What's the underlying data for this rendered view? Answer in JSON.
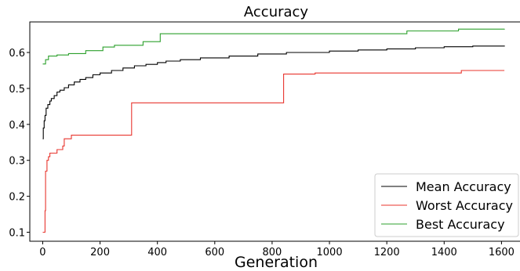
{
  "chart_data": {
    "type": "line",
    "title": "Accuracy",
    "xlabel": "Generation",
    "ylabel": "",
    "xlim": [
      -45,
      1670
    ],
    "ylim": [
      0.075,
      0.685
    ],
    "xticks": [
      0,
      200,
      400,
      600,
      800,
      1000,
      1200,
      1400,
      1600
    ],
    "yticks": [
      0.1,
      0.2,
      0.3,
      0.4,
      0.5,
      0.6
    ],
    "ytick_labels": [
      "0.1",
      "0.2",
      "0.3",
      "0.4",
      "0.5",
      "0.6"
    ],
    "grid": false,
    "legend_position": "lower-right",
    "series": [
      {
        "name": "Mean Accuracy",
        "color": "#000000",
        "step": true,
        "points": [
          [
            0,
            0.36
          ],
          [
            2,
            0.39
          ],
          [
            5,
            0.41
          ],
          [
            8,
            0.425
          ],
          [
            12,
            0.445
          ],
          [
            18,
            0.455
          ],
          [
            25,
            0.465
          ],
          [
            30,
            0.472
          ],
          [
            40,
            0.48
          ],
          [
            50,
            0.49
          ],
          [
            60,
            0.495
          ],
          [
            75,
            0.502
          ],
          [
            90,
            0.51
          ],
          [
            110,
            0.518
          ],
          [
            130,
            0.525
          ],
          [
            150,
            0.53
          ],
          [
            175,
            0.538
          ],
          [
            200,
            0.543
          ],
          [
            240,
            0.55
          ],
          [
            280,
            0.557
          ],
          [
            320,
            0.563
          ],
          [
            360,
            0.567
          ],
          [
            400,
            0.572
          ],
          [
            430,
            0.576
          ],
          [
            480,
            0.58
          ],
          [
            550,
            0.585
          ],
          [
            650,
            0.59
          ],
          [
            750,
            0.596
          ],
          [
            850,
            0.6
          ],
          [
            1000,
            0.604
          ],
          [
            1100,
            0.607
          ],
          [
            1200,
            0.61
          ],
          [
            1300,
            0.613
          ],
          [
            1400,
            0.616
          ],
          [
            1500,
            0.618
          ],
          [
            1610,
            0.619
          ]
        ]
      },
      {
        "name": "Worst Accuracy",
        "color": "#e8352e",
        "step": true,
        "points": [
          [
            0,
            0.1
          ],
          [
            8,
            0.16
          ],
          [
            10,
            0.27
          ],
          [
            15,
            0.3
          ],
          [
            20,
            0.31
          ],
          [
            25,
            0.32
          ],
          [
            50,
            0.33
          ],
          [
            70,
            0.34
          ],
          [
            75,
            0.36
          ],
          [
            100,
            0.37
          ],
          [
            310,
            0.46
          ],
          [
            840,
            0.54
          ],
          [
            950,
            0.543
          ],
          [
            1460,
            0.55
          ],
          [
            1610,
            0.55
          ]
        ]
      },
      {
        "name": "Best Accuracy",
        "color": "#2ca02c",
        "step": true,
        "points": [
          [
            0,
            0.568
          ],
          [
            10,
            0.58
          ],
          [
            20,
            0.59
          ],
          [
            50,
            0.593
          ],
          [
            90,
            0.597
          ],
          [
            150,
            0.605
          ],
          [
            210,
            0.615
          ],
          [
            250,
            0.62
          ],
          [
            350,
            0.63
          ],
          [
            410,
            0.652
          ],
          [
            700,
            0.652
          ],
          [
            1270,
            0.66
          ],
          [
            1450,
            0.665
          ],
          [
            1610,
            0.666
          ]
        ]
      }
    ]
  }
}
